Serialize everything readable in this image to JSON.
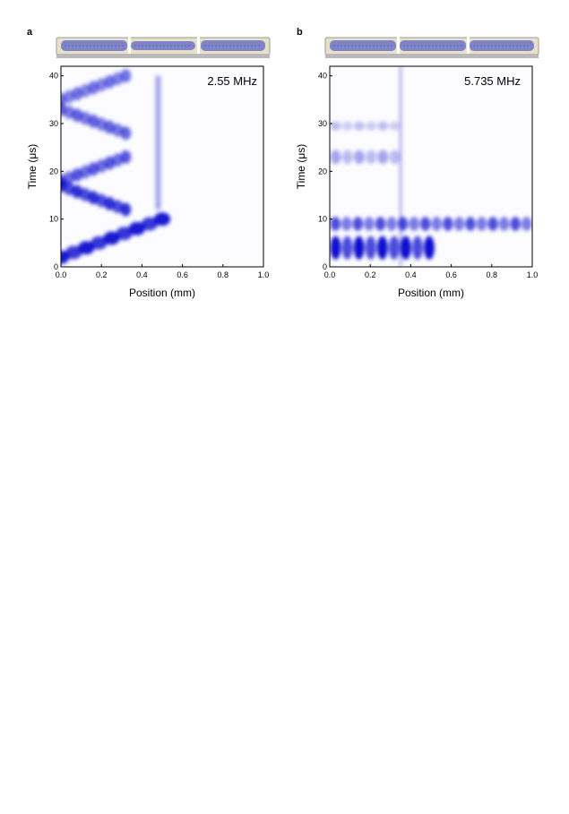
{
  "chart_data": [
    {
      "type": "heatmap",
      "panel": "a",
      "annotation": "2.55 MHz",
      "xlabel": "Position (mm)",
      "ylabel": "Time (μs)",
      "xlim": [
        0.0,
        1.0
      ],
      "ylim": [
        0,
        42
      ],
      "xticks": [
        "0.0",
        "0.2",
        "0.4",
        "0.6",
        "0.8",
        "1.0"
      ],
      "yticks": [
        "0",
        "10",
        "20",
        "30",
        "40"
      ],
      "colormap": [
        "#ffffff",
        "#0000cc"
      ],
      "features": [
        {
          "kind": "diagonal-band",
          "x": [
            0.0,
            0.5
          ],
          "t": [
            2,
            10
          ],
          "intensity": 0.9
        },
        {
          "kind": "diagonal-band",
          "x": [
            0.0,
            0.32
          ],
          "t": [
            17,
            12
          ],
          "intensity": 0.8
        },
        {
          "kind": "diagonal-band",
          "x": [
            0.0,
            0.32
          ],
          "t": [
            18,
            23
          ],
          "intensity": 0.65
        },
        {
          "kind": "diagonal-band",
          "x": [
            0.0,
            0.32
          ],
          "t": [
            33,
            28
          ],
          "intensity": 0.6
        },
        {
          "kind": "diagonal-band",
          "x": [
            0.0,
            0.32
          ],
          "t": [
            35,
            40
          ],
          "intensity": 0.55
        },
        {
          "kind": "vertical-stripe",
          "x": 0.48,
          "t": [
            12,
            40
          ],
          "intensity": 0.35
        }
      ]
    },
    {
      "type": "heatmap",
      "panel": "b",
      "annotation": "5.735 MHz",
      "xlabel": "Position (mm)",
      "ylabel": "Time (μs)",
      "xlim": [
        0.0,
        1.0
      ],
      "ylim": [
        0,
        42
      ],
      "xticks": [
        "0.0",
        "0.2",
        "0.4",
        "0.6",
        "0.8",
        "1.0"
      ],
      "yticks": [
        "0",
        "10",
        "20",
        "30",
        "40"
      ],
      "colormap": [
        "#ffffff",
        "#0000cc"
      ],
      "features": [
        {
          "kind": "horizontal-band",
          "x": [
            0.0,
            0.52
          ],
          "t": [
            2,
            6
          ],
          "intensity": 0.95
        },
        {
          "kind": "horizontal-band",
          "x": [
            0.0,
            1.0
          ],
          "t": [
            8,
            10
          ],
          "intensity": 0.7
        },
        {
          "kind": "horizontal-band",
          "x": [
            0.0,
            0.35
          ],
          "t": [
            22,
            24
          ],
          "intensity": 0.35
        },
        {
          "kind": "horizontal-band",
          "x": [
            0.0,
            0.35
          ],
          "t": [
            29,
            30
          ],
          "intensity": 0.25
        },
        {
          "kind": "vertical-line",
          "x": 0.35,
          "t": [
            0,
            42
          ],
          "intensity": 0.45
        }
      ]
    }
  ]
}
